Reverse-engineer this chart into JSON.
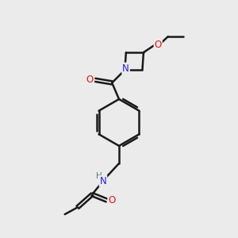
{
  "background_color": "#ebebeb",
  "bond_color": "#1a1a1a",
  "atom_colors": {
    "N": "#2222dd",
    "O": "#ee1111",
    "H": "#557777",
    "C": "#1a1a1a"
  },
  "figsize": [
    3.0,
    3.0
  ],
  "dpi": 100,
  "xlim": [
    0,
    10
  ],
  "ylim": [
    0,
    10
  ]
}
